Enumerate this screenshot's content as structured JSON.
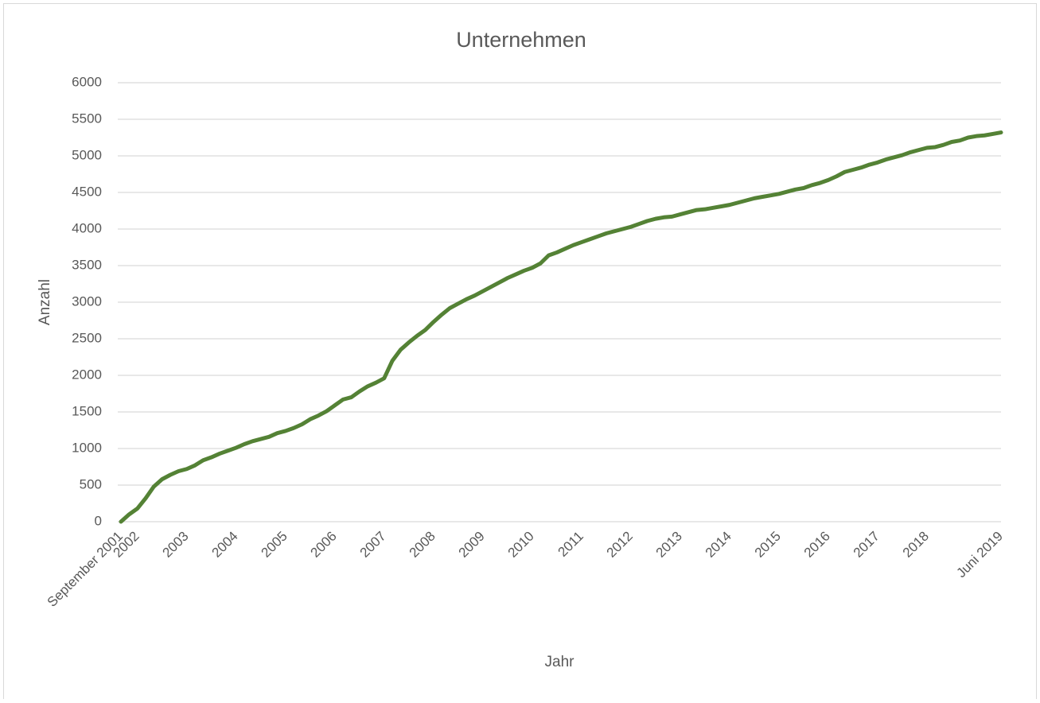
{
  "chart_data": {
    "type": "line",
    "title": "Unternehmen",
    "x_label": "Jahr",
    "y_label": "Anzahl",
    "ylim": [
      0,
      6000
    ],
    "yticks": [
      0,
      500,
      1000,
      1500,
      2000,
      2500,
      3000,
      3500,
      4000,
      4500,
      5000,
      5500,
      6000
    ],
    "grid": true,
    "categories": [
      "September 2001",
      null,
      "2002",
      null,
      null,
      null,
      null,
      null,
      "2003",
      null,
      null,
      null,
      null,
      null,
      "2004",
      null,
      null,
      null,
      null,
      null,
      "2005",
      null,
      null,
      null,
      null,
      null,
      "2006",
      null,
      null,
      null,
      null,
      null,
      "2007",
      null,
      null,
      null,
      null,
      null,
      "2008",
      null,
      null,
      null,
      null,
      null,
      "2009",
      null,
      null,
      null,
      null,
      null,
      "2010",
      null,
      null,
      null,
      null,
      null,
      "2011",
      null,
      null,
      null,
      null,
      null,
      "2012",
      null,
      null,
      null,
      null,
      null,
      "2013",
      null,
      null,
      null,
      null,
      null,
      "2014",
      null,
      null,
      null,
      null,
      null,
      "2015",
      null,
      null,
      null,
      null,
      null,
      "2016",
      null,
      null,
      null,
      null,
      null,
      "2017",
      null,
      null,
      null,
      null,
      null,
      "2018",
      null,
      null,
      null,
      null,
      null,
      null,
      null,
      null,
      "Juni 2019"
    ],
    "series": [
      {
        "name": "Unternehmen",
        "color": "#548235",
        "values": [
          0,
          100,
          180,
          320,
          480,
          580,
          640,
          690,
          720,
          770,
          840,
          880,
          930,
          970,
          1010,
          1060,
          1100,
          1130,
          1160,
          1210,
          1240,
          1280,
          1330,
          1400,
          1450,
          1510,
          1590,
          1670,
          1700,
          1780,
          1850,
          1900,
          1960,
          2200,
          2350,
          2450,
          2540,
          2620,
          2730,
          2830,
          2920,
          2980,
          3040,
          3090,
          3150,
          3210,
          3270,
          3330,
          3380,
          3430,
          3470,
          3530,
          3640,
          3680,
          3730,
          3780,
          3820,
          3860,
          3900,
          3940,
          3970,
          4000,
          4030,
          4070,
          4110,
          4140,
          4160,
          4170,
          4200,
          4230,
          4260,
          4270,
          4290,
          4310,
          4330,
          4360,
          4390,
          4420,
          4440,
          4460,
          4480,
          4510,
          4540,
          4560,
          4600,
          4630,
          4670,
          4720,
          4780,
          4810,
          4840,
          4880,
          4910,
          4950,
          4980,
          5010,
          5050,
          5080,
          5110,
          5120,
          5150,
          5190,
          5210,
          5250,
          5270,
          5280,
          5300,
          5320
        ]
      }
    ]
  }
}
